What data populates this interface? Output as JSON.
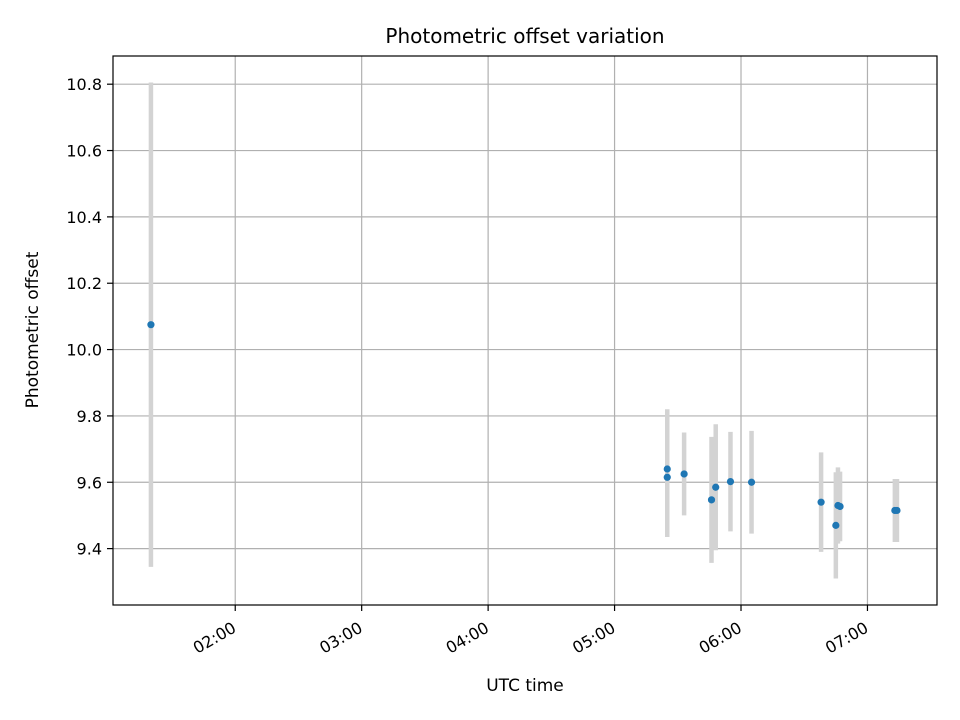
{
  "chart_data": {
    "type": "scatter",
    "title": "Photometric offset variation",
    "xlabel": "UTC time",
    "ylabel": "Photometric offset",
    "x_axis_type": "time",
    "xlim": [
      "01:02",
      "07:33"
    ],
    "ylim": [
      9.23,
      10.885
    ],
    "x_ticks": [
      "02:00",
      "03:00",
      "04:00",
      "05:00",
      "06:00",
      "07:00"
    ],
    "y_ticks": [
      9.4,
      9.6,
      9.8,
      10.0,
      10.2,
      10.4,
      10.6,
      10.8
    ],
    "y_tick_labels": [
      "9.4",
      "9.6",
      "9.8",
      "10.0",
      "10.2",
      "10.4",
      "10.6",
      "10.8"
    ],
    "grid": true,
    "legend": "none",
    "colors": {
      "point": "#1f77b4",
      "errorbar": "#d3d3d3",
      "grid": "#b0b0b0"
    },
    "points": [
      {
        "x": "01:20",
        "y": 10.075,
        "err": 0.73
      },
      {
        "x": "05:25",
        "y": 9.64,
        "err": 0.18
      },
      {
        "x": "05:25",
        "y": 9.615,
        "err": 0.18
      },
      {
        "x": "05:33",
        "y": 9.625,
        "err": 0.125
      },
      {
        "x": "05:46",
        "y": 9.547,
        "err": 0.19
      },
      {
        "x": "05:48",
        "y": 9.585,
        "err": 0.19
      },
      {
        "x": "05:55",
        "y": 9.602,
        "err": 0.15
      },
      {
        "x": "06:05",
        "y": 9.6,
        "err": 0.155
      },
      {
        "x": "06:38",
        "y": 9.54,
        "err": 0.15
      },
      {
        "x": "06:45",
        "y": 9.47,
        "err": 0.16
      },
      {
        "x": "06:46",
        "y": 9.53,
        "err": 0.115
      },
      {
        "x": "06:47",
        "y": 9.527,
        "err": 0.105
      },
      {
        "x": "07:13",
        "y": 9.515,
        "err": 0.095
      },
      {
        "x": "07:14",
        "y": 9.515,
        "err": 0.095
      }
    ]
  }
}
